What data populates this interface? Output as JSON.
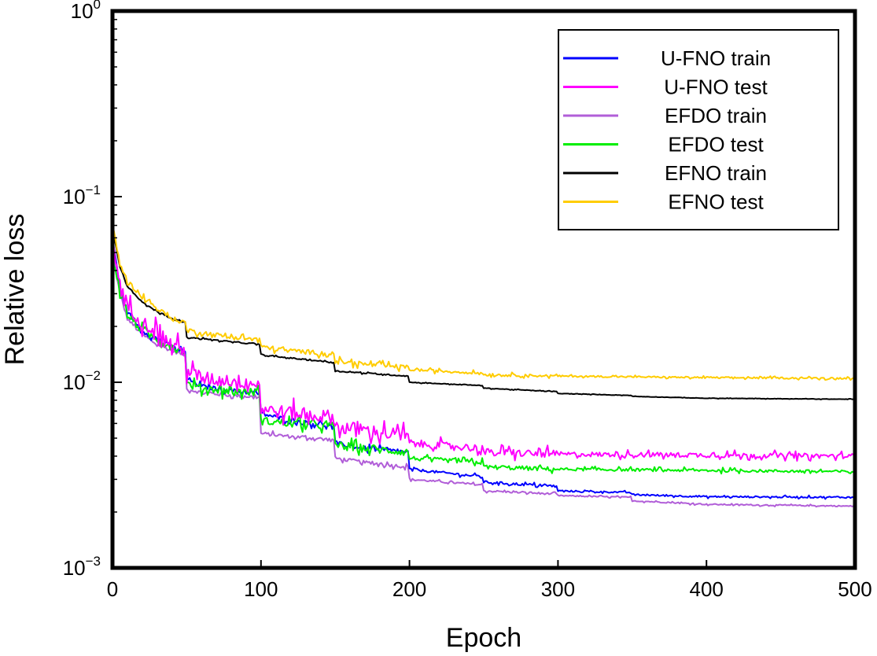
{
  "chart_data": {
    "type": "line",
    "xlabel": "Epoch",
    "ylabel": "Relative loss",
    "yscale": "log",
    "xlim": [
      0,
      500
    ],
    "ylim": [
      0.001,
      1
    ],
    "x_ticks": [
      0,
      100,
      200,
      300,
      400,
      500
    ],
    "y_ticks": [
      {
        "base": "10",
        "exp": "0",
        "value": 1
      },
      {
        "base": "10",
        "exp": "−1",
        "value": 0.1
      },
      {
        "base": "10",
        "exp": "−2",
        "value": 0.01
      },
      {
        "base": "10",
        "exp": "−3",
        "value": 0.001
      }
    ],
    "grid": false,
    "legend_position": "top-right",
    "series": [
      {
        "name": "U-FNO train",
        "color": "#0000ff",
        "noise": 0.04,
        "points": [
          [
            0,
            0.06
          ],
          [
            5,
            0.032
          ],
          [
            10,
            0.024
          ],
          [
            20,
            0.019
          ],
          [
            30,
            0.017
          ],
          [
            40,
            0.0155
          ],
          [
            49,
            0.0145
          ],
          [
            50,
            0.0105
          ],
          [
            60,
            0.0095
          ],
          [
            80,
            0.009
          ],
          [
            99,
            0.0087
          ],
          [
            100,
            0.0068
          ],
          [
            120,
            0.0062
          ],
          [
            149,
            0.0058
          ],
          [
            150,
            0.0047
          ],
          [
            170,
            0.0044
          ],
          [
            199,
            0.0042
          ],
          [
            200,
            0.0034
          ],
          [
            249,
            0.0031
          ],
          [
            250,
            0.0029
          ],
          [
            299,
            0.00275
          ],
          [
            300,
            0.0026
          ],
          [
            349,
            0.00255
          ],
          [
            350,
            0.00248
          ],
          [
            400,
            0.00242
          ],
          [
            500,
            0.0024
          ]
        ]
      },
      {
        "name": "U-FNO test",
        "color": "#ff00ff",
        "noise": 0.12,
        "points": [
          [
            0,
            0.06
          ],
          [
            5,
            0.033
          ],
          [
            10,
            0.026
          ],
          [
            20,
            0.021
          ],
          [
            30,
            0.019
          ],
          [
            40,
            0.016
          ],
          [
            49,
            0.0145
          ],
          [
            50,
            0.0115
          ],
          [
            60,
            0.0105
          ],
          [
            80,
            0.0102
          ],
          [
            99,
            0.0098
          ],
          [
            100,
            0.0072
          ],
          [
            120,
            0.0068
          ],
          [
            149,
            0.0065
          ],
          [
            150,
            0.0058
          ],
          [
            170,
            0.0055
          ],
          [
            199,
            0.0051
          ],
          [
            200,
            0.0047
          ],
          [
            249,
            0.0044
          ],
          [
            250,
            0.0042
          ],
          [
            300,
            0.0041
          ],
          [
            400,
            0.00405
          ],
          [
            500,
            0.004
          ]
        ]
      },
      {
        "name": "EFDO train",
        "color": "#b15ed8",
        "noise": 0.03,
        "points": [
          [
            0,
            0.05
          ],
          [
            5,
            0.03
          ],
          [
            10,
            0.022
          ],
          [
            20,
            0.018
          ],
          [
            30,
            0.016
          ],
          [
            40,
            0.0148
          ],
          [
            49,
            0.014
          ],
          [
            50,
            0.0092
          ],
          [
            60,
            0.0088
          ],
          [
            80,
            0.0085
          ],
          [
            99,
            0.0083
          ],
          [
            100,
            0.0053
          ],
          [
            120,
            0.0051
          ],
          [
            149,
            0.0049
          ],
          [
            150,
            0.0039
          ],
          [
            170,
            0.0037
          ],
          [
            199,
            0.0035
          ],
          [
            200,
            0.003
          ],
          [
            249,
            0.0028
          ],
          [
            250,
            0.0026
          ],
          [
            299,
            0.0025
          ],
          [
            300,
            0.00245
          ],
          [
            349,
            0.0024
          ],
          [
            350,
            0.0023
          ],
          [
            400,
            0.0022
          ],
          [
            500,
            0.00215
          ]
        ]
      },
      {
        "name": "EFDO test",
        "color": "#00ee00",
        "noise": 0.07,
        "points": [
          [
            0,
            0.05
          ],
          [
            5,
            0.031
          ],
          [
            10,
            0.023
          ],
          [
            20,
            0.019
          ],
          [
            30,
            0.017
          ],
          [
            40,
            0.0155
          ],
          [
            49,
            0.0145
          ],
          [
            50,
            0.0098
          ],
          [
            60,
            0.0093
          ],
          [
            80,
            0.009
          ],
          [
            99,
            0.0088
          ],
          [
            100,
            0.0062
          ],
          [
            120,
            0.006
          ],
          [
            149,
            0.0058
          ],
          [
            150,
            0.0046
          ],
          [
            170,
            0.0044
          ],
          [
            199,
            0.0042
          ],
          [
            200,
            0.0039
          ],
          [
            249,
            0.0037
          ],
          [
            250,
            0.0035
          ],
          [
            300,
            0.0034
          ],
          [
            400,
            0.00335
          ],
          [
            500,
            0.0033
          ]
        ]
      },
      {
        "name": "EFNO train",
        "color": "#000000",
        "noise": 0.01,
        "points": [
          [
            0,
            0.068
          ],
          [
            5,
            0.042
          ],
          [
            10,
            0.033
          ],
          [
            20,
            0.027
          ],
          [
            30,
            0.024
          ],
          [
            40,
            0.022
          ],
          [
            49,
            0.021
          ],
          [
            50,
            0.0175
          ],
          [
            60,
            0.0172
          ],
          [
            80,
            0.0165
          ],
          [
            99,
            0.016
          ],
          [
            100,
            0.014
          ],
          [
            120,
            0.0135
          ],
          [
            149,
            0.0128
          ],
          [
            150,
            0.0115
          ],
          [
            170,
            0.0112
          ],
          [
            199,
            0.0108
          ],
          [
            200,
            0.01
          ],
          [
            249,
            0.0096
          ],
          [
            250,
            0.0093
          ],
          [
            299,
            0.0089
          ],
          [
            300,
            0.0087
          ],
          [
            349,
            0.0085
          ],
          [
            350,
            0.0084
          ],
          [
            400,
            0.0082
          ],
          [
            500,
            0.0081
          ]
        ]
      },
      {
        "name": "EFNO test",
        "color": "#ffcc00",
        "noise": 0.04,
        "points": [
          [
            0,
            0.07
          ],
          [
            5,
            0.044
          ],
          [
            10,
            0.035
          ],
          [
            20,
            0.029
          ],
          [
            30,
            0.025
          ],
          [
            40,
            0.022
          ],
          [
            49,
            0.021
          ],
          [
            50,
            0.019
          ],
          [
            60,
            0.0185
          ],
          [
            80,
            0.0175
          ],
          [
            99,
            0.017
          ],
          [
            100,
            0.0155
          ],
          [
            120,
            0.0148
          ],
          [
            149,
            0.0142
          ],
          [
            150,
            0.013
          ],
          [
            170,
            0.0125
          ],
          [
            199,
            0.012
          ],
          [
            200,
            0.0117
          ],
          [
            249,
            0.0112
          ],
          [
            250,
            0.011
          ],
          [
            300,
            0.0108
          ],
          [
            400,
            0.0106
          ],
          [
            500,
            0.0105
          ]
        ]
      }
    ]
  }
}
